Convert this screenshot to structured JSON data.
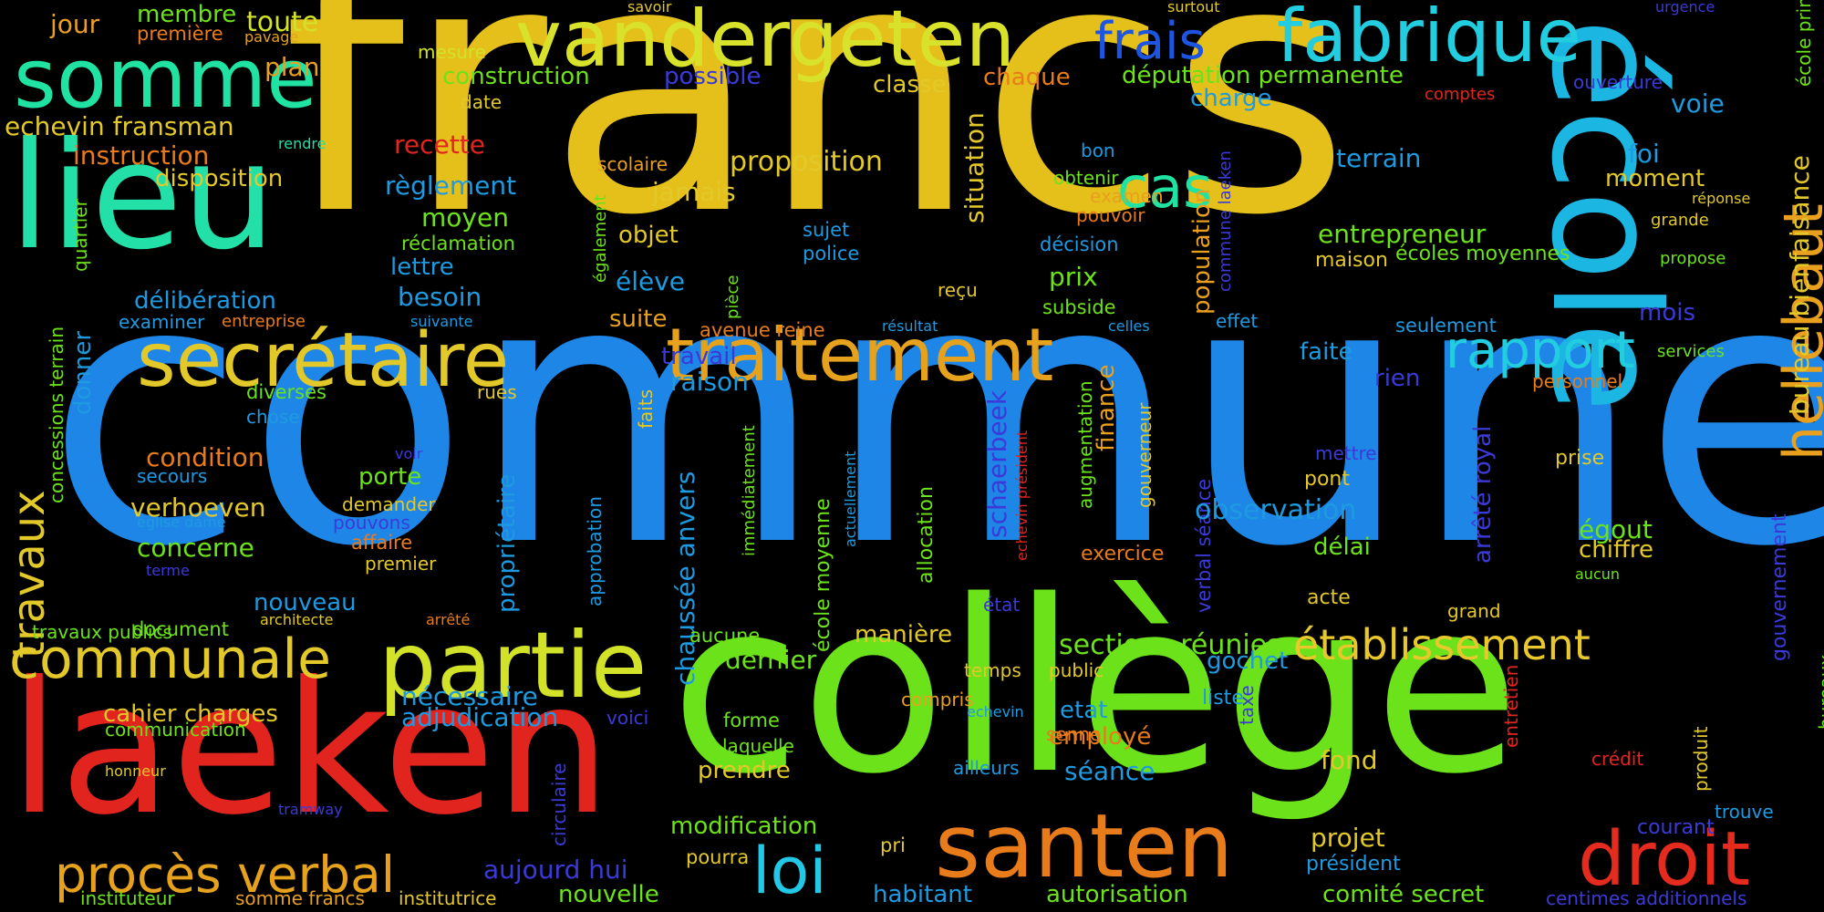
{
  "words": [
    {
      "text": "francs",
      "color": "#e5c01a"
    },
    {
      "text": "commune",
      "color": "#1d86e6"
    },
    {
      "text": "collège",
      "color": "#6ce21a"
    },
    {
      "text": "école",
      "color": "#1cb6e2"
    },
    {
      "text": "laeken",
      "color": "#e2241e"
    },
    {
      "text": "lieu",
      "color": "#23e0a8"
    },
    {
      "text": "vandergeten",
      "color": "#d9e22a"
    },
    {
      "text": "fabrique",
      "color": "#22cde0"
    },
    {
      "text": "somme",
      "color": "#20e2a2"
    },
    {
      "text": "santen",
      "color": "#e87b1a"
    },
    {
      "text": "partie",
      "color": "#d2e228"
    },
    {
      "text": "secrétaire",
      "color": "#e3c82a"
    },
    {
      "text": "traitement",
      "color": "#e6a21c"
    },
    {
      "text": "communale",
      "color": "#e3c82a"
    },
    {
      "text": "droit",
      "color": "#e52a1e"
    },
    {
      "text": "hellebaut",
      "color": "#e8a01e"
    },
    {
      "text": "établissement",
      "color": "#e8c82a"
    },
    {
      "text": "procès verbal",
      "color": "#e6a21c"
    },
    {
      "text": "rapport",
      "color": "#22cde0"
    },
    {
      "text": "cas",
      "color": "#20e2a2"
    },
    {
      "text": "loi",
      "color": "#22c8e6"
    },
    {
      "text": "frais",
      "color": "#1e55e0"
    },
    {
      "text": "travaux",
      "color": "#e3c82a"
    },
    {
      "text": "echevin fransman",
      "color": "#e3c82a"
    },
    {
      "text": "jour",
      "color": "#e8a01e"
    },
    {
      "text": "membre",
      "color": "#6ce21a"
    },
    {
      "text": "toute",
      "color": "#d2e228"
    },
    {
      "text": "première",
      "color": "#e87b1a"
    },
    {
      "text": "pavage",
      "color": "#e8a01e"
    },
    {
      "text": "plan",
      "color": "#e8a01e"
    },
    {
      "text": "mesure",
      "color": "#d2e228"
    },
    {
      "text": "savoir",
      "color": "#e3c82a"
    },
    {
      "text": "surtout",
      "color": "#e3c82a"
    },
    {
      "text": "urgence",
      "color": "#3b3ad8"
    },
    {
      "text": "construction",
      "color": "#6ce21a"
    },
    {
      "text": "possible",
      "color": "#3b3ad8"
    },
    {
      "text": "classe",
      "color": "#e3c82a"
    },
    {
      "text": "chaque",
      "color": "#e87b1a"
    },
    {
      "text": "députation permanente",
      "color": "#6ce21a"
    },
    {
      "text": "ouverture",
      "color": "#3b3ad8"
    },
    {
      "text": "date",
      "color": "#e3c82a"
    },
    {
      "text": "charge",
      "color": "#1e9ae0"
    },
    {
      "text": "comptes",
      "color": "#e2241e"
    },
    {
      "text": "voie",
      "color": "#1e9ae0"
    },
    {
      "text": "instruction",
      "color": "#e87b1a"
    },
    {
      "text": "rendre",
      "color": "#23e0a8"
    },
    {
      "text": "recette",
      "color": "#e2241e"
    },
    {
      "text": "scolaire",
      "color": "#e8a01e"
    },
    {
      "text": "proposition",
      "color": "#e3c82a"
    },
    {
      "text": "bon",
      "color": "#1e9ae0"
    },
    {
      "text": "terrain",
      "color": "#1e9ae0"
    },
    {
      "text": "foi",
      "color": "#1e9ae0"
    },
    {
      "text": "disposition",
      "color": "#e3c82a"
    },
    {
      "text": "règlement",
      "color": "#1e9ae0"
    },
    {
      "text": "jamais",
      "color": "#e3c82a"
    },
    {
      "text": "obtenir",
      "color": "#6ce21a"
    },
    {
      "text": "moment",
      "color": "#e3c82a"
    },
    {
      "text": "école primaire",
      "color": "#6ce21a"
    },
    {
      "text": "quartier",
      "color": "#6ce21a"
    },
    {
      "text": "moyen",
      "color": "#6ce21a"
    },
    {
      "text": "examen",
      "color": "#e8a01e"
    },
    {
      "text": "réponse",
      "color": "#e3c82a"
    },
    {
      "text": "pouvoir",
      "color": "#e87b1a"
    },
    {
      "text": "commune laeken",
      "color": "#3b3ad8"
    },
    {
      "text": "grande",
      "color": "#e3c82a"
    },
    {
      "text": "réclamation",
      "color": "#6ce21a"
    },
    {
      "text": "sujet",
      "color": "#1e9ae0"
    },
    {
      "text": "situation",
      "color": "#e3c82a"
    },
    {
      "text": "entrepreneur",
      "color": "#6ce21a"
    },
    {
      "text": "objet",
      "color": "#e3c82a"
    },
    {
      "text": "également",
      "color": "#6ce21a"
    },
    {
      "text": "décision",
      "color": "#1e9ae0"
    },
    {
      "text": "police",
      "color": "#1e9ae0"
    },
    {
      "text": "maison",
      "color": "#e3c82a"
    },
    {
      "text": "écoles moyennes",
      "color": "#6ce21a"
    },
    {
      "text": "propose",
      "color": "#6ce21a"
    },
    {
      "text": "lettre",
      "color": "#1e9ae0"
    },
    {
      "text": "population",
      "color": "#e8a01e"
    },
    {
      "text": "prix",
      "color": "#6ce21a"
    },
    {
      "text": "élève",
      "color": "#1e9ae0"
    },
    {
      "text": "pièce",
      "color": "#6ce21a"
    },
    {
      "text": "reçu",
      "color": "#e3c82a"
    },
    {
      "text": "délibération",
      "color": "#1e9ae0"
    },
    {
      "text": "besoin",
      "color": "#1e9ae0"
    },
    {
      "text": "subside",
      "color": "#6ce21a"
    },
    {
      "text": "examiner",
      "color": "#1e9ae0"
    },
    {
      "text": "entreprise",
      "color": "#e87b1a"
    },
    {
      "text": "suivante",
      "color": "#1e9ae0"
    },
    {
      "text": "suite",
      "color": "#e8a01e"
    },
    {
      "text": "avenue reine",
      "color": "#e87b1a"
    },
    {
      "text": "résultat",
      "color": "#1e9ae0"
    },
    {
      "text": "celles",
      "color": "#1e9ae0"
    },
    {
      "text": "effet",
      "color": "#1e9ae0"
    },
    {
      "text": "mois",
      "color": "#3b3ad8"
    },
    {
      "text": "seulement",
      "color": "#1e9ae0"
    },
    {
      "text": "services",
      "color": "#6ce21a"
    },
    {
      "text": "donner",
      "color": "#1e9ae0"
    },
    {
      "text": "concessions terrain",
      "color": "#6ce21a"
    },
    {
      "text": "faits",
      "color": "#e3c82a"
    },
    {
      "text": "travail",
      "color": "#3b3ad8"
    },
    {
      "text": "raison",
      "color": "#1e9ae0"
    },
    {
      "text": "faite",
      "color": "#1e9ae0"
    },
    {
      "text": "rien",
      "color": "#3b3ad8"
    },
    {
      "text": "personnel",
      "color": "#e87b1a"
    },
    {
      "text": "diverses",
      "color": "#6ce21a"
    },
    {
      "text": "rues",
      "color": "#e3c82a"
    },
    {
      "text": "chose",
      "color": "#1e9ae0"
    },
    {
      "text": "bureau bienfaisance",
      "color": "#e3c82a"
    },
    {
      "text": "condition",
      "color": "#e87b1a"
    },
    {
      "text": "voir",
      "color": "#3b3ad8"
    },
    {
      "text": "secours",
      "color": "#1e9ae0"
    },
    {
      "text": "porte",
      "color": "#6ce21a"
    },
    {
      "text": "propriétaire",
      "color": "#1e9ae0"
    },
    {
      "text": "chaussée anvers",
      "color": "#1e9ae0"
    },
    {
      "text": "immédiatement",
      "color": "#6ce21a"
    },
    {
      "text": "schaerbeek",
      "color": "#3b3ad8"
    },
    {
      "text": "echevin président",
      "color": "#e2241e"
    },
    {
      "text": "augmentation",
      "color": "#6ce21a"
    },
    {
      "text": "finance",
      "color": "#e8a01e"
    },
    {
      "text": "gouverneur",
      "color": "#e3c82a"
    },
    {
      "text": "verbal séance",
      "color": "#3b3ad8"
    },
    {
      "text": "arrêté royal",
      "color": "#3b3ad8"
    },
    {
      "text": "mettre",
      "color": "#3b3ad8"
    },
    {
      "text": "prise",
      "color": "#e3c82a"
    },
    {
      "text": "pont",
      "color": "#e3c82a"
    },
    {
      "text": "gouvernement",
      "color": "#3b3ad8"
    },
    {
      "text": "demander",
      "color": "#e3c82a"
    },
    {
      "text": "verhoeven",
      "color": "#e3c82a"
    },
    {
      "text": "église dame",
      "color": "#1e9ae0"
    },
    {
      "text": "pouvons",
      "color": "#3b3ad8"
    },
    {
      "text": "approbation",
      "color": "#1e9ae0"
    },
    {
      "text": "école moyenne",
      "color": "#6ce21a"
    },
    {
      "text": "actuellement",
      "color": "#1e9ae0"
    },
    {
      "text": "allocation",
      "color": "#6ce21a"
    },
    {
      "text": "observation",
      "color": "#1e9ae0"
    },
    {
      "text": "égout",
      "color": "#6ce21a"
    },
    {
      "text": "chiffre",
      "color": "#e3c82a"
    },
    {
      "text": "concerne",
      "color": "#6ce21a"
    },
    {
      "text": "affaire",
      "color": "#e87b1a"
    },
    {
      "text": "premier",
      "color": "#e3c82a"
    },
    {
      "text": "terme",
      "color": "#3b3ad8"
    },
    {
      "text": "exercice",
      "color": "#e87b1a"
    },
    {
      "text": "délai",
      "color": "#6ce21a"
    },
    {
      "text": "aucun",
      "color": "#6ce21a"
    },
    {
      "text": "nouveau",
      "color": "#1e9ae0"
    },
    {
      "text": "état",
      "color": "#3b3ad8"
    },
    {
      "text": "acte",
      "color": "#e3c82a"
    },
    {
      "text": "grand",
      "color": "#e3c82a"
    },
    {
      "text": "bureaux",
      "color": "#6ce21a"
    },
    {
      "text": "travaux publics",
      "color": "#6ce21a"
    },
    {
      "text": "document",
      "color": "#6ce21a"
    },
    {
      "text": "architecte",
      "color": "#e3c82a"
    },
    {
      "text": "arrêté",
      "color": "#e87b1a"
    },
    {
      "text": "aucune",
      "color": "#6ce21a"
    },
    {
      "text": "manière",
      "color": "#e3c82a"
    },
    {
      "text": "dernier",
      "color": "#6ce21a"
    },
    {
      "text": "sections réunies",
      "color": "#6ce21a"
    },
    {
      "text": "gochet",
      "color": "#1e9ae0"
    },
    {
      "text": "temps",
      "color": "#e3c82a"
    },
    {
      "text": "compris",
      "color": "#e8a01e"
    },
    {
      "text": "public",
      "color": "#e3c82a"
    },
    {
      "text": "nécessaire",
      "color": "#1e9ae0"
    },
    {
      "text": "cahier charges",
      "color": "#e3c82a"
    },
    {
      "text": "liste",
      "color": "#1e9ae0"
    },
    {
      "text": "etat",
      "color": "#1e9ae0"
    },
    {
      "text": "adjudication",
      "color": "#1e9ae0"
    },
    {
      "text": "voici",
      "color": "#3b3ad8"
    },
    {
      "text": "communication",
      "color": "#6ce21a"
    },
    {
      "text": "forme",
      "color": "#6ce21a"
    },
    {
      "text": "echevin",
      "color": "#1e9ae0"
    },
    {
      "text": "employé",
      "color": "#e87b1a"
    },
    {
      "text": "entretien",
      "color": "#e2241e"
    },
    {
      "text": "produit",
      "color": "#e3c82a"
    },
    {
      "text": "senne",
      "color": "#e87b1a"
    },
    {
      "text": "taxe",
      "color": "#3b3ad8"
    },
    {
      "text": "fond",
      "color": "#e3c82a"
    },
    {
      "text": "crédit",
      "color": "#e2241e"
    },
    {
      "text": "laquelle",
      "color": "#6ce21a"
    },
    {
      "text": "prendre",
      "color": "#e3c82a"
    },
    {
      "text": "ailleurs",
      "color": "#1e9ae0"
    },
    {
      "text": "séance",
      "color": "#1e9ae0"
    },
    {
      "text": "honneur",
      "color": "#e3c82a"
    },
    {
      "text": "circulaire",
      "color": "#3b3ad8"
    },
    {
      "text": "trouve",
      "color": "#1e9ae0"
    },
    {
      "text": "tramway",
      "color": "#3b3ad8"
    },
    {
      "text": "modification",
      "color": "#6ce21a"
    },
    {
      "text": "projet",
      "color": "#e3c82a"
    },
    {
      "text": "courant",
      "color": "#3b3ad8"
    },
    {
      "text": "pri",
      "color": "#e3c82a"
    },
    {
      "text": "pourra",
      "color": "#e3c82a"
    },
    {
      "text": "président",
      "color": "#1e9ae0"
    },
    {
      "text": "aujourd hui",
      "color": "#3b3ad8"
    },
    {
      "text": "instituteur",
      "color": "#6ce21a"
    },
    {
      "text": "somme francs",
      "color": "#e8a01e"
    },
    {
      "text": "institutrice",
      "color": "#e3c82a"
    },
    {
      "text": "nouvelle",
      "color": "#6ce21a"
    },
    {
      "text": "habitant",
      "color": "#1e9ae0"
    },
    {
      "text": "autorisation",
      "color": "#6ce21a"
    },
    {
      "text": "comité secret",
      "color": "#6ce21a"
    },
    {
      "text": "centimes additionnels",
      "color": "#3b3ad8"
    }
  ]
}
